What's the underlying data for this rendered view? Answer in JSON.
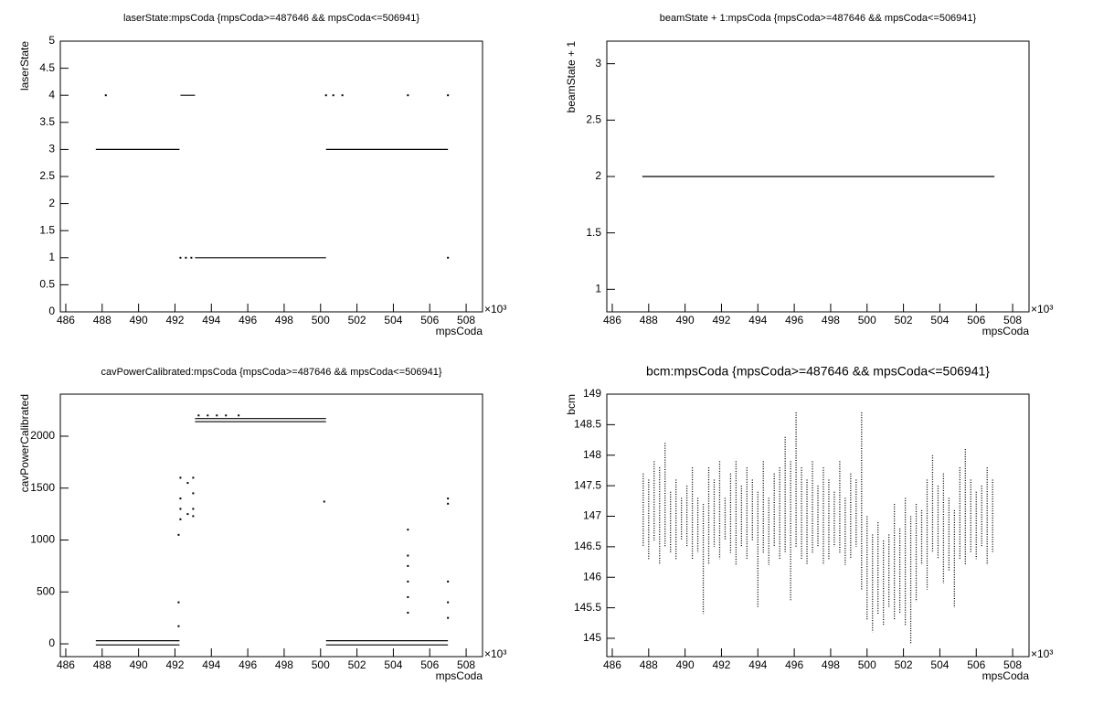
{
  "chart_data": [
    {
      "type": "line",
      "title": "laserState:mpsCoda {mpsCoda>=487646 && mpsCoda<=506941}",
      "xlabel": "mpsCoda",
      "ylabel": "laserState",
      "x_exponent_label": "×10³",
      "xlim": [
        485.7,
        508.9
      ],
      "xticks": [
        486,
        488,
        490,
        492,
        494,
        496,
        498,
        500,
        502,
        504,
        506,
        508
      ],
      "ylim": [
        0,
        5
      ],
      "yticks": [
        0,
        0.5,
        1,
        1.5,
        2,
        2.5,
        3,
        3.5,
        4,
        4.5,
        5
      ],
      "color": "#000000",
      "series": [
        {
          "x": [
            487.65,
            492.25,
            null,
            492.3,
            493.1,
            null,
            493.1,
            500.3,
            null,
            500.3,
            507.0,
            null,
            488.2,
            null,
            500.3,
            null,
            500.7,
            null,
            501.2,
            null,
            504.8,
            null,
            507.0,
            null,
            492.3,
            null,
            492.6,
            null,
            492.9,
            null,
            507.0
          ],
          "values": [
            3,
            3,
            null,
            4,
            4,
            null,
            1,
            1,
            null,
            3,
            3,
            null,
            4,
            null,
            4,
            null,
            4,
            null,
            4,
            null,
            4,
            null,
            4,
            null,
            1,
            null,
            1,
            null,
            1,
            null,
            1
          ]
        }
      ]
    },
    {
      "type": "line",
      "title": "beamState + 1:mpsCoda {mpsCoda>=487646 && mpsCoda<=506941}",
      "xlabel": "mpsCoda",
      "ylabel": "beamState + 1",
      "x_exponent_label": "×10³",
      "xlim": [
        485.7,
        508.9
      ],
      "xticks": [
        486,
        488,
        490,
        492,
        494,
        496,
        498,
        500,
        502,
        504,
        506,
        508
      ],
      "ylim": [
        0.8,
        3.2
      ],
      "yticks": [
        1,
        1.5,
        2,
        2.5,
        3
      ],
      "color": "#000000",
      "series": [
        {
          "x": [
            487.65,
            507.0
          ],
          "values": [
            2,
            2
          ]
        }
      ]
    },
    {
      "type": "line",
      "title": "cavPowerCalibrated:mpsCoda {mpsCoda>=487646 && mpsCoda<=506941}",
      "xlabel": "mpsCoda",
      "ylabel": "cavPowerCalibrated",
      "x_exponent_label": "×10³",
      "xlim": [
        485.7,
        508.9
      ],
      "xticks": [
        486,
        488,
        490,
        492,
        494,
        496,
        498,
        500,
        502,
        504,
        506,
        508
      ],
      "ylim": [
        -123,
        2405
      ],
      "yticks": [
        0,
        500,
        1000,
        1500,
        2000
      ],
      "color": "#000000",
      "series": [
        {
          "x": [
            487.65,
            492.25,
            null,
            487.65,
            492.25,
            null,
            493.1,
            500.3,
            null,
            493.1,
            500.3,
            null,
            500.3,
            507.0,
            null,
            500.3,
            507.0,
            null,
            493.3,
            null,
            493.8,
            null,
            494.3,
            null,
            494.8,
            null,
            495.5,
            null,
            492.2,
            null,
            492.2,
            null,
            492.2,
            null,
            492.3,
            null,
            492.3,
            null,
            492.3,
            null,
            492.3,
            null,
            492.7,
            null,
            492.7,
            null,
            493.0,
            null,
            493.0,
            null,
            493.0,
            null,
            493.0,
            null,
            500.2,
            null,
            504.8,
            null,
            504.8,
            null,
            504.8,
            null,
            504.8,
            null,
            504.8,
            null,
            504.8,
            null,
            507.0,
            null,
            507.0,
            null,
            507.0,
            null,
            507.0,
            null,
            507.0
          ],
          "values": [
            30,
            30,
            null,
            -10,
            -10,
            null,
            2170,
            2170,
            null,
            2140,
            2140,
            null,
            30,
            30,
            null,
            -10,
            -10,
            null,
            2200,
            null,
            2200,
            null,
            2200,
            null,
            2200,
            null,
            2200,
            null,
            1050,
            null,
            400,
            null,
            170,
            null,
            1600,
            null,
            1400,
            null,
            1300,
            null,
            1200,
            null,
            1550,
            null,
            1250,
            null,
            1600,
            null,
            1450,
            null,
            1300,
            null,
            1230,
            null,
            1370,
            null,
            1100,
            null,
            850,
            null,
            750,
            null,
            600,
            null,
            450,
            null,
            300,
            null,
            1400,
            null,
            1350,
            null,
            600,
            null,
            400,
            null,
            250
          ]
        }
      ]
    },
    {
      "type": "range",
      "title": "bcm:mpsCoda {mpsCoda>=487646 && mpsCoda<=506941}",
      "xlabel": "mpsCoda",
      "ylabel": "bcm",
      "x_exponent_label": "×10³",
      "xlim": [
        485.7,
        508.9
      ],
      "xticks": [
        486,
        488,
        490,
        492,
        494,
        496,
        498,
        500,
        502,
        504,
        506,
        508
      ],
      "ylim": [
        144.7,
        149
      ],
      "yticks": [
        145,
        145.5,
        146,
        146.5,
        147,
        147.5,
        148,
        148.5,
        149
      ],
      "color": "#000000",
      "series": [
        {
          "x": [
            487.7,
            488.0,
            488.3,
            488.6,
            488.9,
            489.2,
            489.5,
            489.8,
            490.1,
            490.4,
            490.7,
            491.0,
            491.3,
            491.6,
            491.9,
            492.2,
            492.5,
            492.8,
            493.1,
            493.4,
            493.7,
            494.0,
            494.3,
            494.6,
            494.9,
            495.2,
            495.5,
            495.8,
            496.1,
            496.4,
            496.7,
            497.0,
            497.3,
            497.6,
            497.9,
            498.2,
            498.5,
            498.8,
            499.1,
            499.4,
            499.7,
            500.0,
            500.3,
            500.6,
            500.9,
            501.2,
            501.5,
            501.8,
            502.1,
            502.4,
            502.7,
            503.0,
            503.3,
            503.6,
            503.9,
            504.2,
            504.5,
            504.8,
            505.1,
            505.4,
            505.7,
            506.0,
            506.3,
            506.6,
            506.9
          ],
          "low": [
            146.5,
            146.3,
            146.6,
            146.2,
            146.5,
            146.4,
            146.3,
            146.6,
            146.5,
            146.3,
            146.4,
            145.4,
            146.2,
            146.5,
            146.3,
            146.6,
            146.4,
            146.2,
            146.5,
            146.3,
            146.6,
            145.5,
            146.4,
            146.2,
            146.5,
            146.3,
            146.4,
            145.6,
            146.5,
            146.3,
            146.2,
            146.4,
            146.5,
            146.2,
            146.3,
            146.5,
            146.4,
            146.2,
            146.3,
            146.5,
            145.8,
            145.3,
            145.1,
            145.4,
            145.2,
            145.5,
            145.3,
            145.4,
            145.2,
            144.9,
            145.6,
            146.2,
            145.8,
            146.4,
            146.3,
            145.9,
            146.1,
            145.5,
            146.3,
            146.2,
            146.4,
            146.3,
            146.5,
            146.2,
            146.4
          ],
          "high": [
            147.7,
            147.6,
            147.9,
            147.8,
            148.2,
            147.4,
            147.6,
            147.3,
            147.5,
            147.8,
            147.3,
            147.2,
            147.8,
            147.6,
            147.9,
            147.3,
            147.7,
            147.9,
            147.5,
            147.8,
            147.6,
            147.4,
            147.9,
            147.3,
            147.7,
            147.8,
            148.3,
            147.9,
            148.7,
            147.8,
            147.6,
            147.9,
            147.5,
            147.8,
            147.6,
            147.4,
            147.9,
            147.3,
            147.7,
            147.6,
            148.7,
            147.0,
            146.7,
            146.9,
            146.6,
            146.7,
            147.2,
            146.8,
            147.3,
            147.0,
            147.2,
            147.1,
            147.6,
            148.0,
            147.5,
            147.7,
            147.3,
            147.1,
            147.8,
            148.1,
            147.6,
            147.4,
            147.5,
            147.8,
            147.6
          ]
        }
      ]
    }
  ]
}
